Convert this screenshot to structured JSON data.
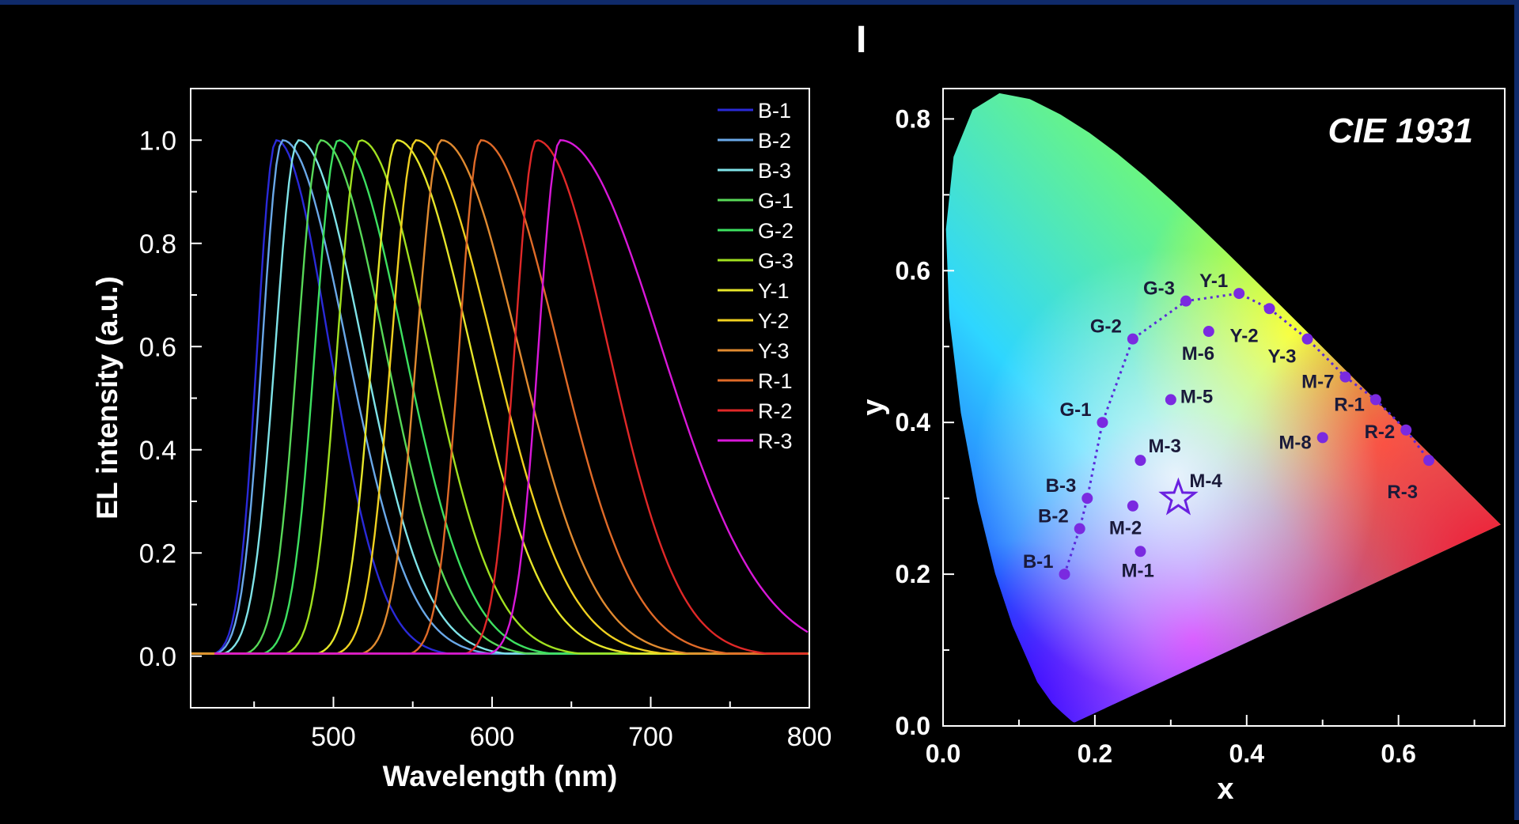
{
  "panel_label": "I",
  "chart_data": [
    {
      "type": "line",
      "xlabel": "Wavelength (nm)",
      "ylabel": "EL intensity (a.u.)",
      "xlim": [
        410,
        800
      ],
      "ylim": [
        -0.1,
        1.1
      ],
      "xticks": [
        500,
        600,
        700,
        800
      ],
      "yticks": [
        0.0,
        0.2,
        0.4,
        0.6,
        0.8,
        1.0
      ],
      "legend_position": "top-right",
      "series": [
        {
          "name": "B-1",
          "color": "#2a2ad8",
          "peak_nm": 464,
          "start_nm": 410,
          "fwhm_left_nm": 28,
          "fwhm_right_nm": 58
        },
        {
          "name": "B-2",
          "color": "#6aa8e8",
          "peak_nm": 468,
          "start_nm": 410,
          "fwhm_left_nm": 30,
          "fwhm_right_nm": 70
        },
        {
          "name": "B-3",
          "color": "#7fe3e8",
          "peak_nm": 478,
          "start_nm": 410,
          "fwhm_left_nm": 34,
          "fwhm_right_nm": 70
        },
        {
          "name": "G-1",
          "color": "#58d858",
          "peak_nm": 492,
          "start_nm": 410,
          "fwhm_left_nm": 34,
          "fwhm_right_nm": 70
        },
        {
          "name": "G-2",
          "color": "#3de060",
          "peak_nm": 503,
          "start_nm": 410,
          "fwhm_left_nm": 34,
          "fwhm_right_nm": 72
        },
        {
          "name": "G-3",
          "color": "#a0e020",
          "peak_nm": 517,
          "start_nm": 410,
          "fwhm_left_nm": 34,
          "fwhm_right_nm": 74
        },
        {
          "name": "Y-1",
          "color": "#e6e62a",
          "peak_nm": 540,
          "start_nm": 410,
          "fwhm_left_nm": 36,
          "fwhm_right_nm": 80
        },
        {
          "name": "Y-2",
          "color": "#f0d020",
          "peak_nm": 552,
          "start_nm": 410,
          "fwhm_left_nm": 36,
          "fwhm_right_nm": 84
        },
        {
          "name": "Y-3",
          "color": "#e08a30",
          "peak_nm": 568,
          "start_nm": 410,
          "fwhm_left_nm": 36,
          "fwhm_right_nm": 84
        },
        {
          "name": "R-1",
          "color": "#e06a28",
          "peak_nm": 593,
          "start_nm": 425,
          "fwhm_left_nm": 32,
          "fwhm_right_nm": 84
        },
        {
          "name": "R-2",
          "color": "#e02828",
          "peak_nm": 628,
          "start_nm": 425,
          "fwhm_left_nm": 32,
          "fwhm_right_nm": 78
        },
        {
          "name": "R-3",
          "color": "#d818d8",
          "peak_nm": 643,
          "start_nm": 425,
          "fwhm_left_nm": 32,
          "fwhm_right_nm": 110
        }
      ]
    },
    {
      "type": "scatter",
      "title": "CIE 1931",
      "xlabel": "x",
      "ylabel": "y",
      "xlim": [
        0.0,
        0.74
      ],
      "ylim": [
        0.0,
        0.84
      ],
      "xticks": [
        0.0,
        0.2,
        0.4,
        0.6
      ],
      "yticks": [
        0.0,
        0.2,
        0.4,
        0.6,
        0.8
      ],
      "point_color": "#7a2ae0",
      "connected_path": [
        "B-1",
        "B-2",
        "B-3",
        "G-1",
        "G-2",
        "G-3",
        "Y-1",
        "Y-2",
        "Y-3",
        "M-7",
        "R-1",
        "R-2",
        "R-3"
      ],
      "points": [
        {
          "label": "B-1",
          "x": 0.16,
          "y": 0.2
        },
        {
          "label": "B-2",
          "x": 0.18,
          "y": 0.26
        },
        {
          "label": "B-3",
          "x": 0.19,
          "y": 0.3
        },
        {
          "label": "G-1",
          "x": 0.21,
          "y": 0.4
        },
        {
          "label": "G-2",
          "x": 0.25,
          "y": 0.51
        },
        {
          "label": "G-3",
          "x": 0.32,
          "y": 0.56
        },
        {
          "label": "Y-1",
          "x": 0.39,
          "y": 0.57
        },
        {
          "label": "Y-2",
          "x": 0.43,
          "y": 0.55
        },
        {
          "label": "Y-3",
          "x": 0.48,
          "y": 0.51
        },
        {
          "label": "M-7",
          "x": 0.53,
          "y": 0.46
        },
        {
          "label": "R-1",
          "x": 0.57,
          "y": 0.43
        },
        {
          "label": "R-2",
          "x": 0.61,
          "y": 0.39
        },
        {
          "label": "R-3",
          "x": 0.64,
          "y": 0.35
        },
        {
          "label": "M-1",
          "x": 0.26,
          "y": 0.23
        },
        {
          "label": "M-2",
          "x": 0.25,
          "y": 0.29
        },
        {
          "label": "M-3",
          "x": 0.26,
          "y": 0.35
        },
        {
          "label": "M-5",
          "x": 0.3,
          "y": 0.43
        },
        {
          "label": "M-6",
          "x": 0.35,
          "y": 0.52
        },
        {
          "label": "M-8",
          "x": 0.5,
          "y": 0.38
        }
      ],
      "star_point": {
        "label": "M-4",
        "x": 0.31,
        "y": 0.3
      }
    }
  ]
}
